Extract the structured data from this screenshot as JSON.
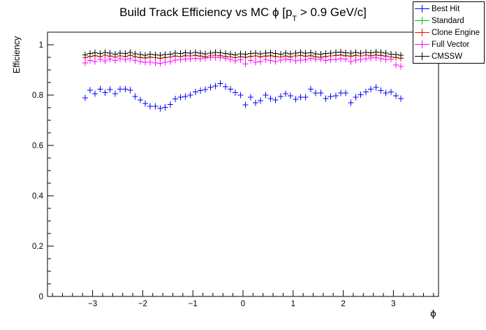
{
  "chart_data": {
    "type": "scatter",
    "title": "Build Track Efficiency vs MC ϕ [p_T > 0.9 GeV/c]",
    "title_parts": {
      "prefix": "Build Track Efficiency vs MC ϕ [p",
      "sub": "T",
      "suffix": " > 0.9 GeV/c]"
    },
    "xlabel": "ϕ",
    "ylabel": "Efficiency",
    "xlim": [
      -3.9,
      3.9
    ],
    "ylim": [
      0,
      1.05
    ],
    "grid": false,
    "legend_position": "top-right",
    "marker_style": "plus-with-error-bars",
    "x_ticks": {
      "major_values": [
        -3,
        -2,
        -1,
        0,
        1,
        2,
        3
      ],
      "major_labels": [
        "−3",
        "−2",
        "−1",
        "0",
        "1",
        "2",
        "3"
      ],
      "minor_step": 0.2
    },
    "y_ticks": {
      "major_values": [
        0,
        0.2,
        0.4,
        0.6,
        0.8,
        1
      ],
      "major_labels": [
        "0",
        "0.2",
        "0.4",
        "0.6",
        "0.8",
        "1"
      ],
      "minor_step": 0.05
    },
    "x": [
      -3.15,
      -3.05,
      -2.95,
      -2.85,
      -2.75,
      -2.65,
      -2.55,
      -2.45,
      -2.35,
      -2.25,
      -2.15,
      -2.05,
      -1.95,
      -1.85,
      -1.75,
      -1.65,
      -1.55,
      -1.45,
      -1.35,
      -1.25,
      -1.15,
      -1.05,
      -0.95,
      -0.85,
      -0.75,
      -0.65,
      -0.55,
      -0.45,
      -0.35,
      -0.25,
      -0.15,
      -0.05,
      0.05,
      0.15,
      0.25,
      0.35,
      0.45,
      0.55,
      0.65,
      0.75,
      0.85,
      0.95,
      1.05,
      1.15,
      1.25,
      1.35,
      1.45,
      1.55,
      1.65,
      1.75,
      1.85,
      1.95,
      2.05,
      2.15,
      2.25,
      2.35,
      2.45,
      2.55,
      2.65,
      2.75,
      2.85,
      2.95,
      3.05,
      3.15
    ],
    "series": [
      {
        "name": "Best Hit",
        "color": "#0000ff",
        "values": [
          0.789,
          0.82,
          0.806,
          0.824,
          0.81,
          0.822,
          0.806,
          0.824,
          0.824,
          0.82,
          0.794,
          0.781,
          0.766,
          0.756,
          0.755,
          0.747,
          0.751,
          0.763,
          0.785,
          0.791,
          0.794,
          0.8,
          0.813,
          0.818,
          0.822,
          0.83,
          0.836,
          0.846,
          0.833,
          0.824,
          0.81,
          0.8,
          0.761,
          0.791,
          0.769,
          0.778,
          0.8,
          0.786,
          0.781,
          0.794,
          0.806,
          0.797,
          0.783,
          0.791,
          0.791,
          0.824,
          0.808,
          0.808,
          0.786,
          0.794,
          0.797,
          0.808,
          0.808,
          0.769,
          0.791,
          0.802,
          0.813,
          0.824,
          0.83,
          0.818,
          0.808,
          0.813,
          0.797,
          0.786
        ]
      },
      {
        "name": "Standard",
        "color": "#00bf00",
        "values": [
          0.949,
          0.954,
          0.957,
          0.954,
          0.959,
          0.955,
          0.952,
          0.956,
          0.954,
          0.958,
          0.953,
          0.95,
          0.948,
          0.951,
          0.949,
          0.947,
          0.95,
          0.952,
          0.955,
          0.954,
          0.957,
          0.956,
          0.958,
          0.955,
          0.953,
          0.956,
          0.959,
          0.957,
          0.954,
          0.952,
          0.949,
          0.953,
          0.951,
          0.954,
          0.956,
          0.953,
          0.955,
          0.957,
          0.954,
          0.952,
          0.955,
          0.953,
          0.956,
          0.958,
          0.955,
          0.957,
          0.953,
          0.951,
          0.954,
          0.956,
          0.958,
          0.96,
          0.957,
          0.955,
          0.958,
          0.956,
          0.959,
          0.957,
          0.96,
          0.958,
          0.955,
          0.952,
          0.95,
          0.947
        ]
      },
      {
        "name": "Clone Engine",
        "color": "#ff0000",
        "values": [
          0.948,
          0.953,
          0.956,
          0.953,
          0.958,
          0.954,
          0.951,
          0.955,
          0.953,
          0.957,
          0.952,
          0.949,
          0.947,
          0.95,
          0.948,
          0.946,
          0.949,
          0.951,
          0.954,
          0.953,
          0.956,
          0.955,
          0.957,
          0.954,
          0.952,
          0.955,
          0.958,
          0.956,
          0.953,
          0.951,
          0.948,
          0.952,
          0.95,
          0.953,
          0.955,
          0.952,
          0.954,
          0.956,
          0.953,
          0.951,
          0.954,
          0.952,
          0.955,
          0.957,
          0.954,
          0.956,
          0.952,
          0.95,
          0.953,
          0.955,
          0.957,
          0.959,
          0.956,
          0.954,
          0.957,
          0.955,
          0.958,
          0.956,
          0.959,
          0.957,
          0.954,
          0.951,
          0.949,
          0.946
        ]
      },
      {
        "name": "Full Vector",
        "color": "#ff00ff",
        "values": [
          0.928,
          0.938,
          0.933,
          0.941,
          0.936,
          0.943,
          0.938,
          0.944,
          0.941,
          0.944,
          0.938,
          0.933,
          0.93,
          0.931,
          0.928,
          0.926,
          0.93,
          0.934,
          0.939,
          0.941,
          0.943,
          0.944,
          0.946,
          0.944,
          0.947,
          0.949,
          0.95,
          0.949,
          0.946,
          0.941,
          0.936,
          0.94,
          0.924,
          0.937,
          0.93,
          0.934,
          0.941,
          0.937,
          0.934,
          0.939,
          0.943,
          0.94,
          0.936,
          0.939,
          0.94,
          0.946,
          0.943,
          0.943,
          0.938,
          0.94,
          0.941,
          0.944,
          0.943,
          0.933,
          0.939,
          0.941,
          0.944,
          0.947,
          0.948,
          0.944,
          0.941,
          0.943,
          0.92,
          0.914
        ]
      },
      {
        "name": "CMSSW",
        "color": "#000000",
        "values": [
          0.96,
          0.965,
          0.968,
          0.965,
          0.97,
          0.966,
          0.963,
          0.967,
          0.965,
          0.969,
          0.964,
          0.961,
          0.959,
          0.962,
          0.96,
          0.958,
          0.961,
          0.963,
          0.966,
          0.965,
          0.968,
          0.967,
          0.969,
          0.966,
          0.964,
          0.967,
          0.97,
          0.968,
          0.965,
          0.963,
          0.96,
          0.964,
          0.962,
          0.965,
          0.967,
          0.964,
          0.966,
          0.968,
          0.965,
          0.963,
          0.966,
          0.964,
          0.967,
          0.969,
          0.966,
          0.968,
          0.964,
          0.962,
          0.965,
          0.967,
          0.969,
          0.971,
          0.968,
          0.966,
          0.969,
          0.967,
          0.97,
          0.968,
          0.971,
          0.969,
          0.966,
          0.963,
          0.961,
          0.958
        ]
      }
    ]
  }
}
